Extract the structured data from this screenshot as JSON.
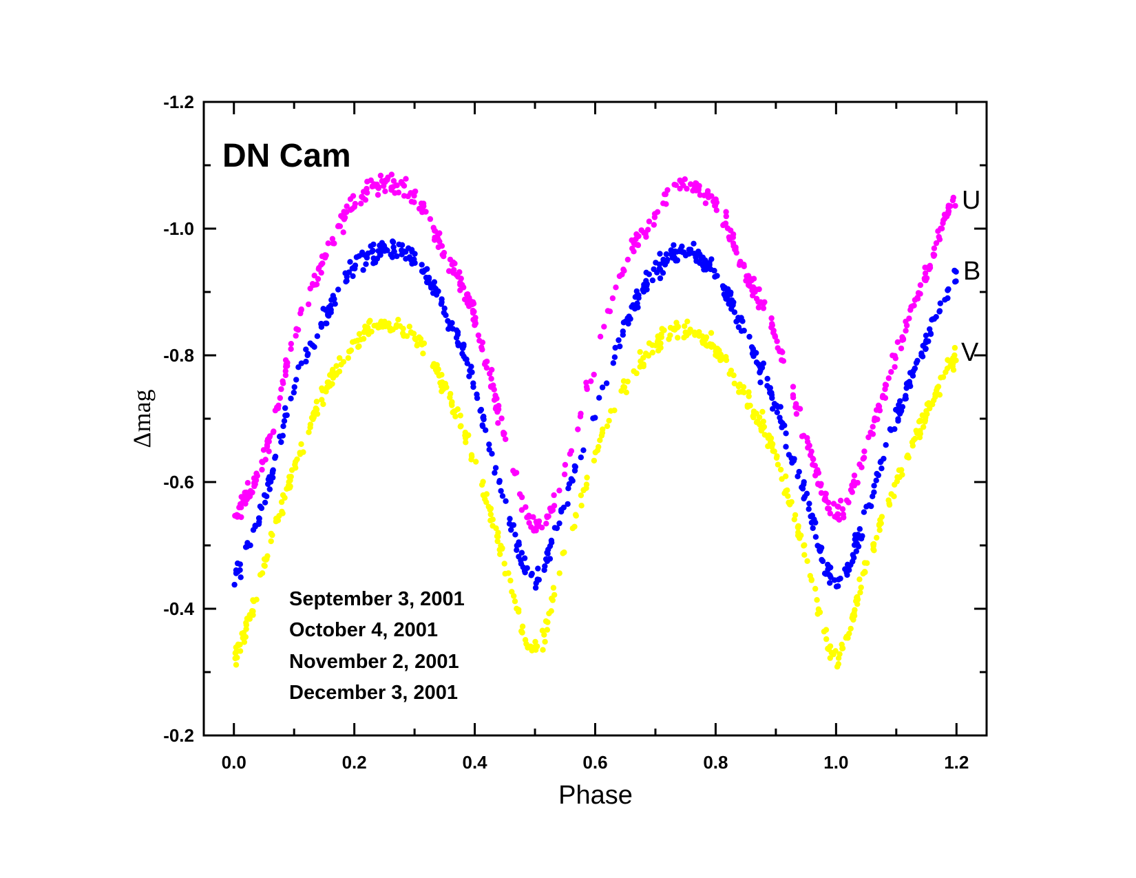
{
  "chart_data": {
    "type": "scatter",
    "title": "DN Cam",
    "xlabel": "Phase",
    "ylabel": "Δmag",
    "xlim": [
      -0.05,
      1.25
    ],
    "ylim": [
      -1.2,
      -0.2
    ],
    "y_inverted": true,
    "x_ticks": [
      0.0,
      0.2,
      0.4,
      0.6,
      0.8,
      1.0,
      1.2
    ],
    "x_tick_labels": [
      "0.0",
      "0.2",
      "0.4",
      "0.6",
      "0.8",
      "1.0",
      "1.2"
    ],
    "x_minor_ticks": [
      0.1,
      0.3,
      0.5,
      0.7,
      0.9,
      1.1
    ],
    "y_ticks": [
      -1.2,
      -1.0,
      -0.8,
      -0.6,
      -0.4,
      -0.2
    ],
    "y_tick_labels": [
      "-1.2",
      "-1.0",
      "-0.8",
      "-0.6",
      "-0.4",
      "-0.2"
    ],
    "y_minor_ticks": [
      -1.1,
      -0.9,
      -0.7,
      -0.5,
      -0.3
    ],
    "grid": false,
    "annotations": [
      "September 3, 2001",
      "October 4, 2001",
      "November 2, 2001",
      "December 3, 2001"
    ],
    "series": [
      {
        "name": "U",
        "color": "#ff00ff",
        "x": [
          0.0,
          0.05,
          0.1,
          0.15,
          0.2,
          0.25,
          0.3,
          0.35,
          0.4,
          0.45,
          0.5,
          0.55,
          0.6,
          0.65,
          0.7,
          0.74,
          0.8,
          0.85,
          0.9,
          0.95,
          1.0,
          1.05,
          1.1,
          1.15,
          1.2
        ],
        "y": [
          -0.55,
          -0.64,
          -0.83,
          -0.95,
          -1.04,
          -1.07,
          -1.05,
          -0.96,
          -0.86,
          -0.67,
          -0.53,
          -0.62,
          -0.8,
          -0.94,
          -1.02,
          -1.07,
          -1.04,
          -0.93,
          -0.83,
          -0.67,
          -0.55,
          -0.65,
          -0.8,
          -0.93,
          -1.05
        ]
      },
      {
        "name": "B",
        "color": "#0000ff",
        "x": [
          0.0,
          0.05,
          0.1,
          0.15,
          0.2,
          0.25,
          0.3,
          0.35,
          0.4,
          0.45,
          0.5,
          0.55,
          0.6,
          0.65,
          0.7,
          0.74,
          0.8,
          0.85,
          0.9,
          0.95,
          1.0,
          1.05,
          1.1,
          1.15,
          1.2
        ],
        "y": [
          -0.45,
          -0.57,
          -0.75,
          -0.86,
          -0.94,
          -0.965,
          -0.95,
          -0.87,
          -0.75,
          -0.56,
          -0.45,
          -0.57,
          -0.71,
          -0.85,
          -0.93,
          -0.96,
          -0.93,
          -0.83,
          -0.72,
          -0.57,
          -0.44,
          -0.55,
          -0.7,
          -0.82,
          -0.925
        ]
      },
      {
        "name": "V",
        "color": "#ffff00",
        "x": [
          0.0,
          0.05,
          0.1,
          0.15,
          0.2,
          0.25,
          0.3,
          0.35,
          0.4,
          0.45,
          0.5,
          0.55,
          0.6,
          0.65,
          0.7,
          0.75,
          0.8,
          0.85,
          0.9,
          0.95,
          1.0,
          1.05,
          1.1,
          1.15,
          1.2
        ],
        "y": [
          -0.32,
          -0.47,
          -0.62,
          -0.74,
          -0.82,
          -0.85,
          -0.83,
          -0.75,
          -0.63,
          -0.47,
          -0.335,
          -0.49,
          -0.64,
          -0.75,
          -0.82,
          -0.84,
          -0.81,
          -0.73,
          -0.64,
          -0.48,
          -0.325,
          -0.47,
          -0.6,
          -0.71,
          -0.8
        ]
      }
    ]
  }
}
